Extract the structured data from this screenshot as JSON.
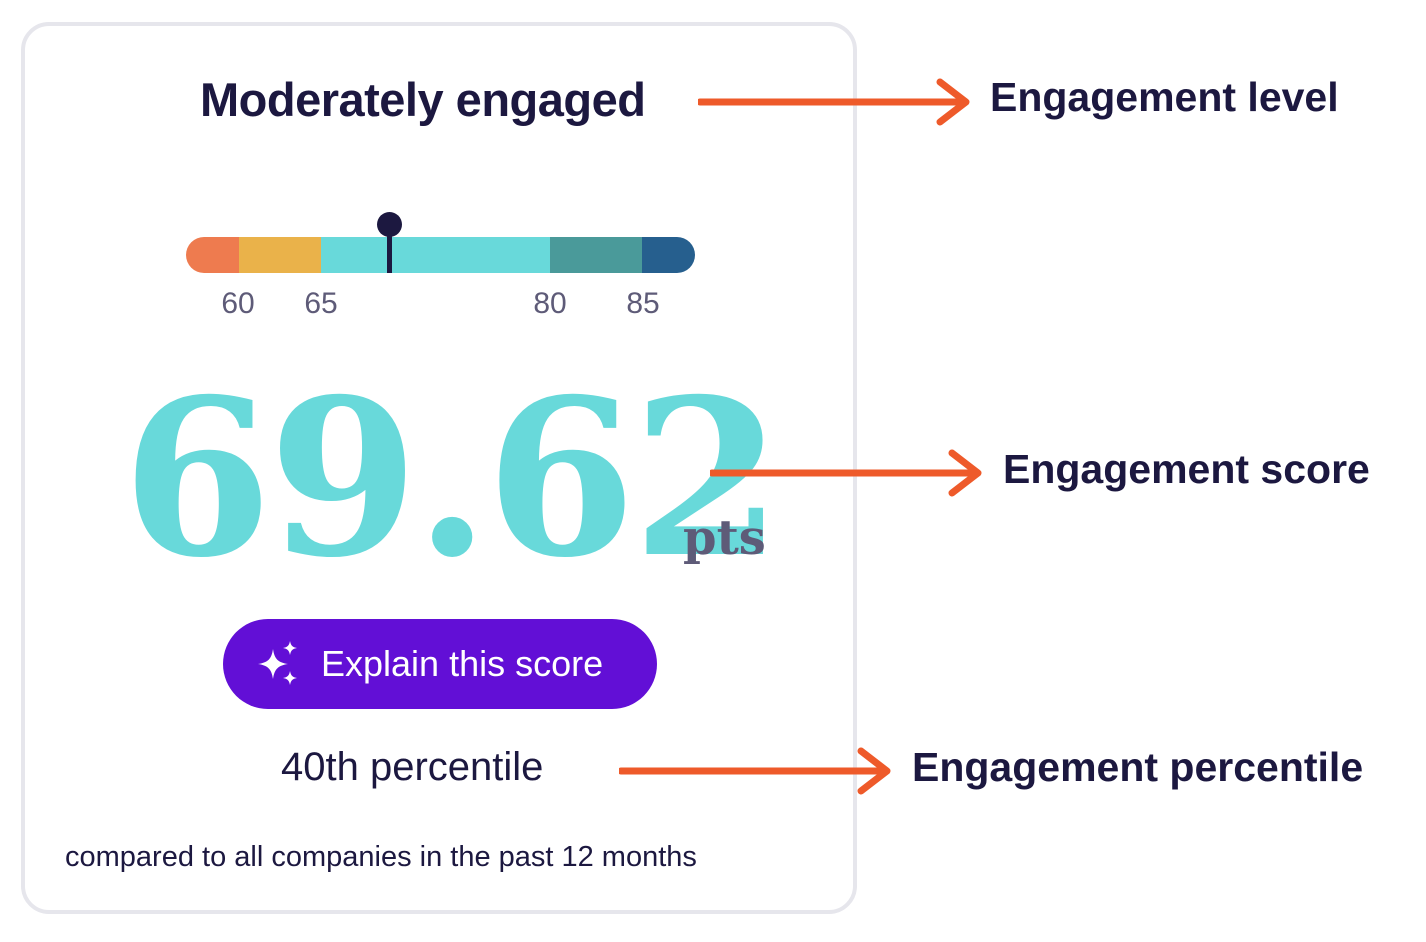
{
  "card": {
    "engagement_level": "Moderately engaged",
    "scale": {
      "ticks": [
        "60",
        "65",
        "80",
        "85"
      ],
      "segments": [
        {
          "color": "#ee7b4f"
        },
        {
          "color": "#eab24a"
        },
        {
          "color": "#68d9da"
        },
        {
          "color": "#4a9a9a"
        },
        {
          "color": "#265f8e"
        }
      ],
      "marker_value": 69.62
    },
    "score": "69.62",
    "score_unit": "pts",
    "explain_button_label": "Explain this score",
    "explain_button_icon": "sparkles-icon",
    "percentile": "40th percentile",
    "comparison_note": "compared to all companies in the past 12 months"
  },
  "annotations": {
    "level": "Engagement level",
    "score": "Engagement score",
    "percentile": "Engagement percentile",
    "arrow_color": "#ee5a2a"
  },
  "colors": {
    "score": "#68d9da",
    "button": "#620fd6",
    "text_dark": "#1c1840",
    "text_muted": "#5e5b78"
  }
}
